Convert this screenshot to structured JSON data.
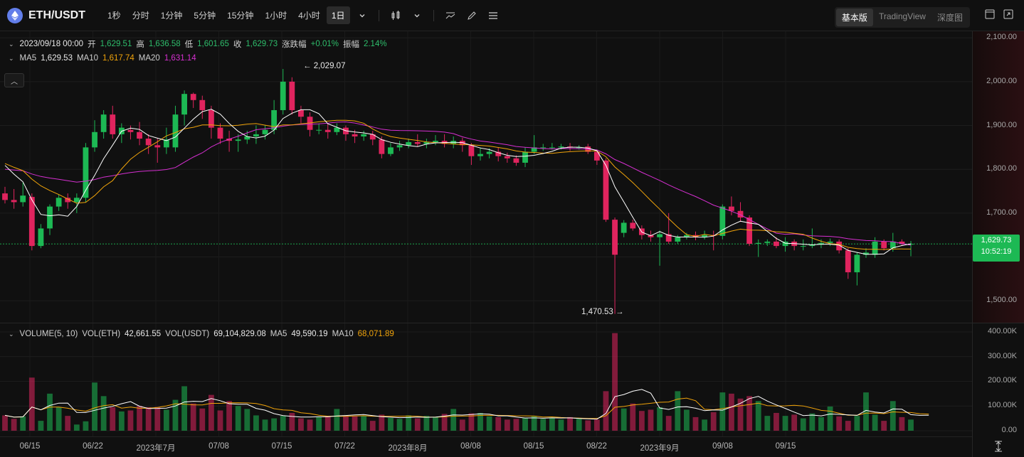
{
  "toolbar": {
    "pair": "ETH/USDT",
    "intervals": [
      "1秒",
      "分时",
      "1分钟",
      "5分钟",
      "15分钟",
      "1小时",
      "4小时",
      "1日"
    ],
    "active_interval": "1日",
    "view_tabs": [
      "基本版",
      "TradingView",
      "深度图"
    ],
    "active_view": "基本版"
  },
  "ohlc": {
    "date": "2023/09/18 00:00",
    "open_label": "开",
    "open": "1,629.51",
    "high_label": "高",
    "high": "1,636.58",
    "low_label": "低",
    "low": "1,601.65",
    "close_label": "收",
    "close": "1,629.73",
    "change_label": "涨跌幅",
    "change": "+0.01%",
    "amp_label": "振幅",
    "amp": "2.14%"
  },
  "ma": {
    "ma5_label": "MA5",
    "ma5": "1,629.53",
    "ma10_label": "MA10",
    "ma10": "1,617.74",
    "ma20_label": "MA20",
    "ma20": "1,631.14"
  },
  "volume": {
    "label": "VOLUME(5, 10)",
    "eth_label": "VOL(ETH)",
    "eth": "42,661.55",
    "usdt_label": "VOL(USDT)",
    "usdt": "69,104,829.08",
    "ma5_label": "MA5",
    "ma5": "49,590.19",
    "ma10_label": "MA10",
    "ma10": "68,071.89"
  },
  "price_axis": [
    "2,100.00",
    "2,000.00",
    "1,900.00",
    "1,800.00",
    "1,700.00",
    "1,500.00"
  ],
  "volume_axis": [
    "400.00K",
    "300.00K",
    "200.00K",
    "100.00K",
    "0.00"
  ],
  "time_axis": [
    "06/15",
    "06/22",
    "2023年7月",
    "07/08",
    "07/15",
    "07/22",
    "2023年8月",
    "08/08",
    "08/15",
    "08/22",
    "2023年9月",
    "09/08",
    "09/15"
  ],
  "annotations": {
    "high": "← 2,029.07",
    "low": "1,470.53 →"
  },
  "last_price": {
    "price": "1,629.73",
    "countdown": "10:52:19"
  },
  "colors": {
    "up": "#1db954",
    "down": "#e0245e",
    "ma5": "#ffffff",
    "ma10": "#f0a30a",
    "ma20": "#d62fd1",
    "background": "#101010"
  },
  "chart_data": {
    "type": "candlestick",
    "y_range": [
      1450,
      2115
    ],
    "candles": [
      {
        "o": 1745,
        "c": 1730,
        "h": 1760,
        "l": 1722
      },
      {
        "o": 1730,
        "c": 1725,
        "h": 1755,
        "l": 1710
      },
      {
        "o": 1725,
        "c": 1740,
        "h": 1770,
        "l": 1715
      },
      {
        "o": 1737,
        "c": 1625,
        "h": 1745,
        "l": 1615
      },
      {
        "o": 1625,
        "c": 1665,
        "h": 1675,
        "l": 1620
      },
      {
        "o": 1665,
        "c": 1715,
        "h": 1720,
        "l": 1650
      },
      {
        "o": 1715,
        "c": 1735,
        "h": 1742,
        "l": 1705
      },
      {
        "o": 1735,
        "c": 1725,
        "h": 1745,
        "l": 1710
      },
      {
        "o": 1725,
        "c": 1735,
        "h": 1745,
        "l": 1700
      },
      {
        "o": 1735,
        "c": 1850,
        "h": 1860,
        "l": 1725
      },
      {
        "o": 1850,
        "c": 1885,
        "h": 1912,
        "l": 1840
      },
      {
        "o": 1885,
        "c": 1925,
        "h": 1935,
        "l": 1870
      },
      {
        "o": 1925,
        "c": 1880,
        "h": 1945,
        "l": 1870
      },
      {
        "o": 1880,
        "c": 1895,
        "h": 1905,
        "l": 1860
      },
      {
        "o": 1890,
        "c": 1885,
        "h": 1900,
        "l": 1868
      },
      {
        "o": 1885,
        "c": 1870,
        "h": 1908,
        "l": 1855
      },
      {
        "o": 1870,
        "c": 1855,
        "h": 1880,
        "l": 1835
      },
      {
        "o": 1855,
        "c": 1850,
        "h": 1870,
        "l": 1815
      },
      {
        "o": 1850,
        "c": 1868,
        "h": 1895,
        "l": 1835
      },
      {
        "o": 1850,
        "c": 1925,
        "h": 1945,
        "l": 1840
      },
      {
        "o": 1925,
        "c": 1972,
        "h": 1980,
        "l": 1900
      },
      {
        "o": 1972,
        "c": 1958,
        "h": 1975,
        "l": 1940
      },
      {
        "o": 1958,
        "c": 1935,
        "h": 1968,
        "l": 1915
      },
      {
        "o": 1935,
        "c": 1895,
        "h": 1945,
        "l": 1870
      },
      {
        "o": 1895,
        "c": 1870,
        "h": 1905,
        "l": 1858
      },
      {
        "o": 1870,
        "c": 1865,
        "h": 1888,
        "l": 1840
      },
      {
        "o": 1865,
        "c": 1868,
        "h": 1880,
        "l": 1840
      },
      {
        "o": 1868,
        "c": 1875,
        "h": 1888,
        "l": 1858
      },
      {
        "o": 1875,
        "c": 1880,
        "h": 1900,
        "l": 1858
      },
      {
        "o": 1880,
        "c": 1890,
        "h": 1900,
        "l": 1868
      },
      {
        "o": 1890,
        "c": 1935,
        "h": 1958,
        "l": 1880
      },
      {
        "o": 1935,
        "c": 2000,
        "h": 2029,
        "l": 1925
      },
      {
        "o": 2000,
        "c": 1935,
        "h": 2010,
        "l": 1925
      },
      {
        "o": 1935,
        "c": 1920,
        "h": 1945,
        "l": 1905
      },
      {
        "o": 1920,
        "c": 1890,
        "h": 1930,
        "l": 1875
      },
      {
        "o": 1890,
        "c": 1890,
        "h": 1905,
        "l": 1880
      },
      {
        "o": 1890,
        "c": 1885,
        "h": 1905,
        "l": 1870
      },
      {
        "o": 1885,
        "c": 1895,
        "h": 1905,
        "l": 1878
      },
      {
        "o": 1895,
        "c": 1880,
        "h": 1900,
        "l": 1865
      },
      {
        "o": 1880,
        "c": 1875,
        "h": 1890,
        "l": 1860
      },
      {
        "o": 1875,
        "c": 1880,
        "h": 1888,
        "l": 1865
      },
      {
        "o": 1880,
        "c": 1868,
        "h": 1888,
        "l": 1855
      },
      {
        "o": 1868,
        "c": 1835,
        "h": 1875,
        "l": 1825
      },
      {
        "o": 1835,
        "c": 1850,
        "h": 1860,
        "l": 1830
      },
      {
        "o": 1850,
        "c": 1855,
        "h": 1865,
        "l": 1842
      },
      {
        "o": 1855,
        "c": 1862,
        "h": 1870,
        "l": 1848
      },
      {
        "o": 1862,
        "c": 1858,
        "h": 1880,
        "l": 1852
      },
      {
        "o": 1858,
        "c": 1862,
        "h": 1870,
        "l": 1848
      },
      {
        "o": 1862,
        "c": 1865,
        "h": 1878,
        "l": 1855
      },
      {
        "o": 1865,
        "c": 1858,
        "h": 1880,
        "l": 1850
      },
      {
        "o": 1858,
        "c": 1865,
        "h": 1875,
        "l": 1848
      },
      {
        "o": 1865,
        "c": 1855,
        "h": 1872,
        "l": 1840
      },
      {
        "o": 1855,
        "c": 1830,
        "h": 1860,
        "l": 1810
      },
      {
        "o": 1830,
        "c": 1835,
        "h": 1850,
        "l": 1820
      },
      {
        "o": 1835,
        "c": 1840,
        "h": 1848,
        "l": 1825
      },
      {
        "o": 1840,
        "c": 1830,
        "h": 1850,
        "l": 1818
      },
      {
        "o": 1830,
        "c": 1825,
        "h": 1838,
        "l": 1815
      },
      {
        "o": 1825,
        "c": 1815,
        "h": 1832,
        "l": 1808
      },
      {
        "o": 1815,
        "c": 1840,
        "h": 1850,
        "l": 1805
      },
      {
        "o": 1840,
        "c": 1850,
        "h": 1878,
        "l": 1835
      },
      {
        "o": 1850,
        "c": 1850,
        "h": 1858,
        "l": 1842
      },
      {
        "o": 1850,
        "c": 1850,
        "h": 1860,
        "l": 1845
      },
      {
        "o": 1850,
        "c": 1852,
        "h": 1858,
        "l": 1845
      },
      {
        "o": 1852,
        "c": 1850,
        "h": 1860,
        "l": 1842
      },
      {
        "o": 1850,
        "c": 1850,
        "h": 1855,
        "l": 1845
      },
      {
        "o": 1852,
        "c": 1840,
        "h": 1858,
        "l": 1835
      },
      {
        "o": 1840,
        "c": 1820,
        "h": 1845,
        "l": 1810
      },
      {
        "o": 1820,
        "c": 1685,
        "h": 1825,
        "l": 1680
      },
      {
        "o": 1685,
        "c": 1605,
        "h": 1690,
        "l": 1470
      },
      {
        "o": 1655,
        "c": 1678,
        "h": 1684,
        "l": 1645
      },
      {
        "o": 1678,
        "c": 1665,
        "h": 1685,
        "l": 1660
      },
      {
        "o": 1665,
        "c": 1650,
        "h": 1672,
        "l": 1640
      },
      {
        "o": 1650,
        "c": 1645,
        "h": 1660,
        "l": 1635
      },
      {
        "o": 1645,
        "c": 1652,
        "h": 1660,
        "l": 1580
      },
      {
        "o": 1652,
        "c": 1635,
        "h": 1700,
        "l": 1630
      },
      {
        "o": 1635,
        "c": 1645,
        "h": 1650,
        "l": 1630
      },
      {
        "o": 1645,
        "c": 1650,
        "h": 1655,
        "l": 1640
      },
      {
        "o": 1650,
        "c": 1645,
        "h": 1658,
        "l": 1638
      },
      {
        "o": 1645,
        "c": 1650,
        "h": 1660,
        "l": 1640
      },
      {
        "o": 1650,
        "c": 1648,
        "h": 1660,
        "l": 1615
      },
      {
        "o": 1648,
        "c": 1715,
        "h": 1720,
        "l": 1640
      },
      {
        "o": 1715,
        "c": 1705,
        "h": 1738,
        "l": 1695
      },
      {
        "o": 1705,
        "c": 1690,
        "h": 1725,
        "l": 1680
      },
      {
        "o": 1690,
        "c": 1630,
        "h": 1695,
        "l": 1625
      },
      {
        "o": 1630,
        "c": 1632,
        "h": 1640,
        "l": 1600
      },
      {
        "o": 1632,
        "c": 1635,
        "h": 1640,
        "l": 1625
      },
      {
        "o": 1635,
        "c": 1625,
        "h": 1645,
        "l": 1620
      },
      {
        "o": 1625,
        "c": 1635,
        "h": 1645,
        "l": 1612
      },
      {
        "o": 1635,
        "c": 1625,
        "h": 1640,
        "l": 1615
      },
      {
        "o": 1625,
        "c": 1625,
        "h": 1640,
        "l": 1615
      },
      {
        "o": 1625,
        "c": 1628,
        "h": 1665,
        "l": 1620
      },
      {
        "o": 1628,
        "c": 1632,
        "h": 1640,
        "l": 1620
      },
      {
        "o": 1632,
        "c": 1635,
        "h": 1642,
        "l": 1625
      },
      {
        "o": 1635,
        "c": 1615,
        "h": 1640,
        "l": 1608
      },
      {
        "o": 1615,
        "c": 1565,
        "h": 1620,
        "l": 1550
      },
      {
        "o": 1565,
        "c": 1605,
        "h": 1610,
        "l": 1535
      },
      {
        "o": 1605,
        "c": 1610,
        "h": 1620,
        "l": 1598
      },
      {
        "o": 1605,
        "c": 1635,
        "h": 1645,
        "l": 1598
      },
      {
        "o": 1635,
        "c": 1620,
        "h": 1640,
        "l": 1615
      },
      {
        "o": 1620,
        "c": 1635,
        "h": 1655,
        "l": 1612
      },
      {
        "o": 1635,
        "c": 1630,
        "h": 1640,
        "l": 1625
      },
      {
        "o": 1629.51,
        "c": 1629.73,
        "h": 1636.58,
        "l": 1601.65
      }
    ],
    "volume_k": [
      62,
      48,
      58,
      215,
      40,
      150,
      95,
      60,
      25,
      38,
      195,
      140,
      95,
      78,
      82,
      100,
      95,
      96,
      85,
      125,
      180,
      110,
      90,
      145,
      82,
      120,
      100,
      88,
      62,
      45,
      50,
      60,
      72,
      50,
      45,
      55,
      60,
      88,
      60,
      58,
      60,
      40,
      65,
      52,
      48,
      62,
      50,
      60,
      55,
      68,
      88,
      45,
      70,
      72,
      58,
      55,
      45,
      48,
      52,
      60,
      48,
      52,
      45,
      55,
      48,
      42,
      45,
      160,
      395,
      90,
      110,
      80,
      85,
      95,
      60,
      160,
      85,
      55,
      45,
      75,
      155,
      150,
      130,
      140,
      120,
      60,
      72,
      60,
      65,
      50,
      70,
      55,
      98,
      58,
      40,
      60,
      155,
      65,
      40,
      120,
      55,
      45,
      50,
      42
    ]
  }
}
